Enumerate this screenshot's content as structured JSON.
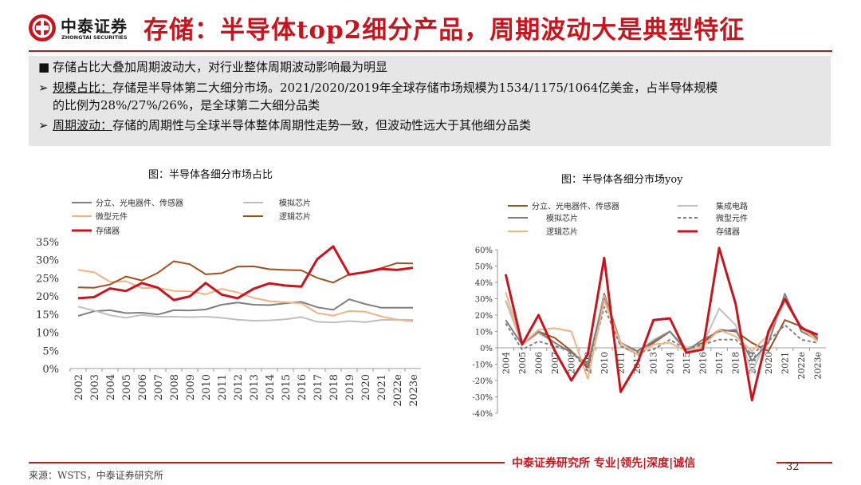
{
  "header": {
    "logo_cn": "中泰证券",
    "logo_en": "ZHONGTAI SECURITIES",
    "title": "存储：半导体top2细分产品，周期波动大是典型特征"
  },
  "summary": {
    "line1_mark": "■",
    "line1_text": "存储占比大叠加周期波动大，对行业整体周期波动影响最为明显",
    "line2_mark": "➢",
    "line2_label": "规模占比：",
    "line2_text": "存储是半导体第二大细分市场。2021/2020/2019年全球存储市场规模为1534/1175/1064亿美金，占半导体规模",
    "line2_cont": "的比例为28%/27%/26%，是全球第二大细分品类",
    "line3_mark": "➢",
    "line3_label": "周期波动：",
    "line3_text": "存储的周期性与全球半导体整体周期性走势一致，但波动性远大于其他细分品类"
  },
  "footer": {
    "slogan": "中泰证券研究所 专业|领先|深度|诚信",
    "page": "32",
    "source": "来源：WSTS，中泰证券研究所"
  },
  "colors": {
    "brand_red": "#c8151d",
    "discrete": "#7f7f7f",
    "analog": "#bfbfbf",
    "micro": "#f4b183",
    "logic": "#a0501e",
    "memory": "#c8151d",
    "ic": "#c0c0c0",
    "micro_yoy": "#7f7f7f",
    "logic_yoy": "#f4b183"
  },
  "chart_data": [
    {
      "type": "line",
      "title": "图：半导体各细分市场占比",
      "categories": [
        "2002",
        "2003",
        "2004",
        "2005",
        "2006",
        "2007",
        "2008",
        "2009",
        "2010",
        "2011",
        "2012",
        "2013",
        "2014",
        "2015",
        "2016",
        "2017",
        "2018",
        "2019",
        "2020",
        "2021",
        "2022e",
        "2023e"
      ],
      "ylim": [
        0,
        35
      ],
      "yticks": [
        "0%",
        "5%",
        "10%",
        "15%",
        "20%",
        "25%",
        "30%",
        "35%"
      ],
      "series": [
        {
          "name": "分立、光电器件、传感器",
          "color": "#7f7f7f",
          "values": [
            14.5,
            15.8,
            16.1,
            15.3,
            15.4,
            14.9,
            16.1,
            16.0,
            16.3,
            17.6,
            18.2,
            17.6,
            17.5,
            18.0,
            18.4,
            16.9,
            16.2,
            19.1,
            17.8,
            16.8,
            16.8,
            16.8
          ]
        },
        {
          "name": "模拟芯片",
          "color": "#bfbfbf",
          "values": [
            17.1,
            16.0,
            14.7,
            14.0,
            14.8,
            14.3,
            14.3,
            14.2,
            14.3,
            14.0,
            13.5,
            13.2,
            13.3,
            13.6,
            14.2,
            12.9,
            12.7,
            13.1,
            12.8,
            13.4,
            13.5,
            13.4
          ]
        },
        {
          "name": "微型元件",
          "color": "#f4b183",
          "values": [
            27.2,
            26.6,
            23.9,
            24.1,
            22.2,
            22.3,
            21.4,
            21.3,
            20.5,
            22.0,
            21.0,
            19.5,
            18.6,
            18.3,
            18.0,
            15.3,
            14.6,
            15.9,
            15.7,
            14.4,
            13.5,
            13.0
          ]
        },
        {
          "name": "逻辑芯片",
          "color": "#a0501e",
          "values": [
            22.4,
            22.3,
            23.2,
            25.4,
            24.3,
            26.4,
            29.6,
            28.8,
            26.0,
            26.3,
            28.1,
            28.2,
            27.4,
            27.2,
            27.1,
            25.0,
            23.7,
            26.0,
            26.6,
            27.7,
            29.1,
            29.0
          ]
        },
        {
          "name": "存储器",
          "color": "#c8151d",
          "values": [
            19.4,
            19.7,
            22.1,
            21.4,
            23.6,
            22.3,
            18.9,
            19.9,
            23.6,
            20.4,
            19.4,
            22.0,
            23.5,
            22.9,
            22.6,
            30.2,
            33.7,
            25.9,
            26.6,
            27.5,
            27.2,
            27.8
          ]
        }
      ]
    },
    {
      "type": "line",
      "title": "图：半导体各细分市场yoy",
      "categories": [
        "2004",
        "2005",
        "2006",
        "2007",
        "2008",
        "2009",
        "2010",
        "2011",
        "2012",
        "2013",
        "2014",
        "2015",
        "2016",
        "2017",
        "2018",
        "2019",
        "2020",
        "2021",
        "2022e",
        "2023e"
      ],
      "ylim": [
        -40,
        60
      ],
      "yticks": [
        "-40%",
        "-30%",
        "-20%",
        "-10%",
        "0%",
        "10%",
        "20%",
        "30%",
        "40%",
        "50%",
        "60%"
      ],
      "series": [
        {
          "name": "分立、光电器件、传感器",
          "color": "#a0501e",
          "values": [
            29,
            2,
            10,
            6,
            -2,
            -12,
            33,
            3,
            -2,
            3,
            10,
            -1,
            3,
            11,
            10,
            3,
            -2,
            17,
            13,
            6
          ]
        },
        {
          "name": "集成电路",
          "color": "#c0c0c0",
          "values": [
            29,
            2,
            9,
            3,
            -3,
            -10,
            32,
            1,
            -4,
            5,
            10,
            0,
            2,
            24,
            14,
            -15,
            8,
            28,
            12,
            5
          ]
        },
        {
          "name": "模拟芯片",
          "color": "#7f7f7f",
          "values": [
            17,
            2,
            10,
            3,
            -3,
            -10,
            30,
            3,
            -2,
            4,
            10,
            -2,
            5,
            10,
            11,
            -8,
            3,
            33,
            10,
            5
          ]
        },
        {
          "name": "微型元件",
          "color": "#7f7f7f",
          "dashed": true,
          "values": [
            15,
            -1,
            4,
            1,
            -2,
            -14,
            25,
            1,
            -3,
            -1,
            5,
            -1,
            2,
            5,
            5,
            -4,
            4,
            14,
            5,
            3
          ]
        },
        {
          "name": "逻辑芯片",
          "color": "#f4b183",
          "values": [
            34,
            2,
            11,
            12,
            10,
            -19,
            29,
            3,
            -4,
            2,
            3,
            -2,
            1,
            11,
            7,
            -2,
            8,
            30,
            12,
            4
          ]
        },
        {
          "name": "存储器",
          "color": "#c8151d",
          "values": [
            45,
            2,
            20,
            -2,
            -20,
            -4,
            55,
            -27,
            -10,
            17,
            18,
            -3,
            -1,
            61,
            27,
            -32,
            10,
            30,
            12,
            8
          ]
        }
      ]
    }
  ]
}
